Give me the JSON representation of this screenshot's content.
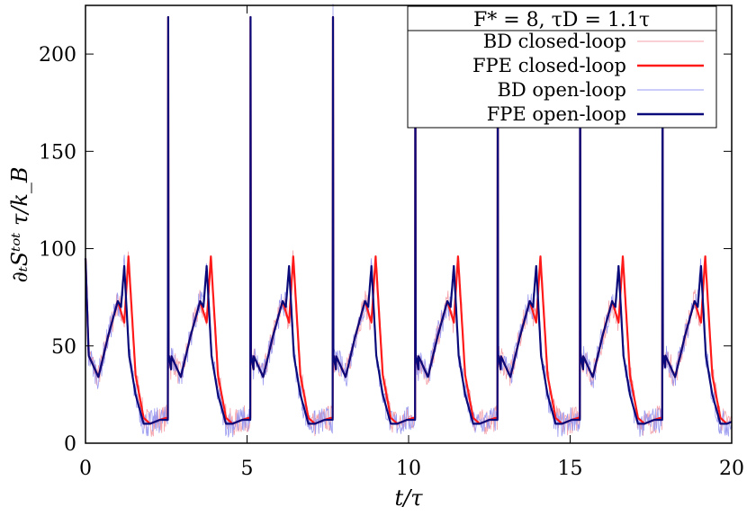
{
  "chart_data": {
    "type": "line",
    "xlabel": "t/τ",
    "ylabel": "∂ₜSᵗᵒᵗ τ/k_B",
    "xlim": [
      0,
      20
    ],
    "ylim": [
      0,
      225
    ],
    "xticks": [
      "0",
      "5",
      "10",
      "15",
      "20"
    ],
    "yticks": [
      "0",
      "50",
      "100",
      "150",
      "200"
    ],
    "grid": false,
    "legend_placement": "top-right",
    "legend_title": "F* = 8, τD = 1.1τ",
    "period": 2.55,
    "series": [
      {
        "name": "BD closed-loop",
        "color": "#f4a0a8",
        "style": "thin-noisy",
        "x": [
          0.0,
          0.1,
          0.4,
          0.7,
          1.0,
          1.2,
          1.33,
          1.55,
          1.8,
          2.0,
          2.3,
          2.49
        ],
        "y": [
          95,
          45,
          34,
          55,
          73,
          62,
          96,
          35,
          13,
          10,
          12,
          13
        ]
      },
      {
        "name": "FPE closed-loop",
        "color": "#ff1a1a",
        "style": "thick",
        "x": [
          0.0,
          0.1,
          0.4,
          0.7,
          1.0,
          1.2,
          1.33,
          1.55,
          1.8,
          2.0,
          2.3,
          2.49,
          2.5,
          2.56,
          2.7
        ],
        "y": [
          95,
          45,
          34,
          55,
          73,
          62,
          96,
          35,
          13,
          10,
          12,
          13,
          219,
          45,
          36
        ]
      },
      {
        "name": "BD open-loop",
        "color": "#9a9af0",
        "style": "thin-noisy",
        "x": [
          0.0,
          0.1,
          0.4,
          0.7,
          1.0,
          1.1,
          1.2,
          1.35,
          1.55,
          1.8,
          2.0,
          2.3,
          2.49
        ],
        "y": [
          95,
          45,
          34,
          55,
          73,
          70,
          91,
          45,
          25,
          10,
          10,
          12,
          13
        ]
      },
      {
        "name": "FPE open-loop",
        "color": "#0a0a7a",
        "style": "thick",
        "x": [
          0.0,
          0.1,
          0.4,
          0.7,
          1.0,
          1.1,
          1.2,
          1.35,
          1.55,
          1.8,
          2.0,
          2.3,
          2.49
        ],
        "y": [
          95,
          45,
          34,
          55,
          73,
          70,
          91,
          45,
          25,
          10,
          10,
          12,
          13
        ]
      }
    ]
  }
}
